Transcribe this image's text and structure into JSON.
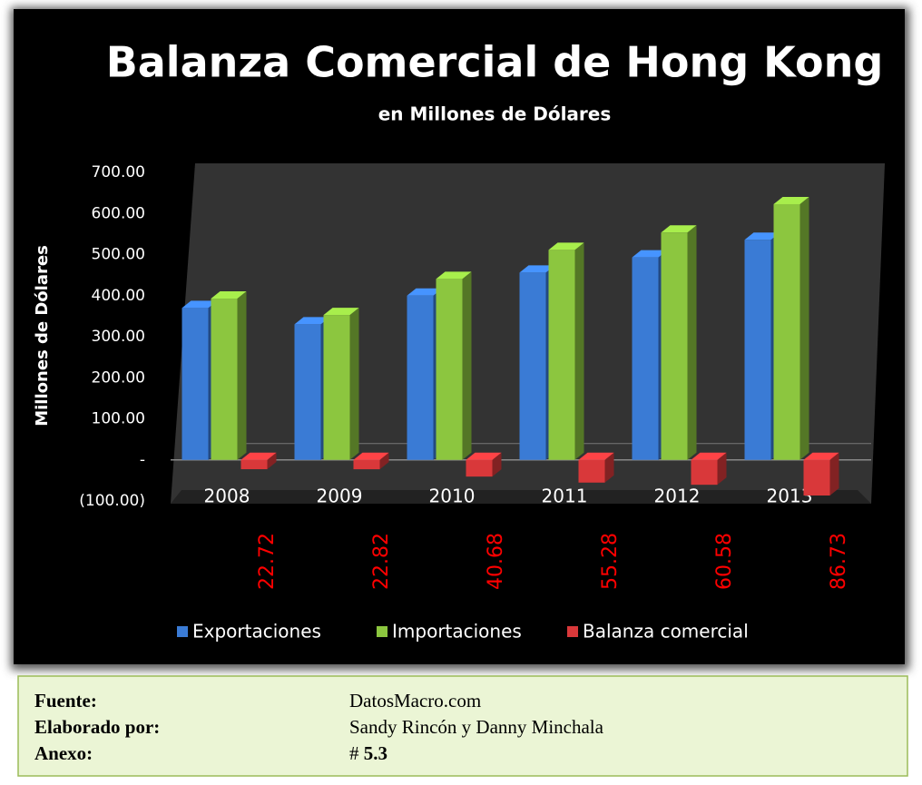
{
  "chart_data": {
    "type": "bar3d",
    "title": "Balanza Comercial de Hong Kong",
    "subtitle": "en Millones de Dólares",
    "y_label": "Millones de Dólares",
    "categories": [
      "2008",
      "2009",
      "2010",
      "2011",
      "2012",
      "2013"
    ],
    "series": [
      {
        "name": "Exportaciones",
        "color": "#3a7bd5",
        "values": [
          370,
          330,
          400,
          456,
          493,
          536
        ]
      },
      {
        "name": "Importaciones",
        "color": "#8cc63f",
        "values": [
          392.72,
          352.82,
          440.68,
          511.28,
          553.58,
          622.73
        ]
      },
      {
        "name": "Balanza comercial",
        "color": "#d9383a",
        "values": [
          -22.72,
          -22.82,
          -40.68,
          -55.28,
          -60.58,
          -86.73
        ],
        "value_labels": [
          "22.72",
          "22.82",
          "40.68",
          "55.28",
          "60.58",
          "86.73"
        ],
        "label_color": "#ff0000"
      }
    ],
    "ylim": [
      -100,
      700
    ],
    "yticks": [
      {
        "value": -100,
        "label": "(100.00)"
      },
      {
        "value": 0,
        "label": "-"
      },
      {
        "value": 100,
        "label": "100.00"
      },
      {
        "value": 200,
        "label": "200.00"
      },
      {
        "value": 300,
        "label": "300.00"
      },
      {
        "value": 400,
        "label": "400.00"
      },
      {
        "value": 500,
        "label": "500.00"
      },
      {
        "value": 600,
        "label": "600.00"
      },
      {
        "value": 700,
        "label": "700.00"
      }
    ],
    "legend": "bottom"
  },
  "footer": {
    "rows": [
      [
        "Fuente:",
        "DatosMacro.com"
      ],
      [
        "Elaborado por:",
        "Sandy Rincón y Danny Minchala"
      ],
      [
        "Anexo:",
        "#",
        "5.3"
      ]
    ]
  }
}
